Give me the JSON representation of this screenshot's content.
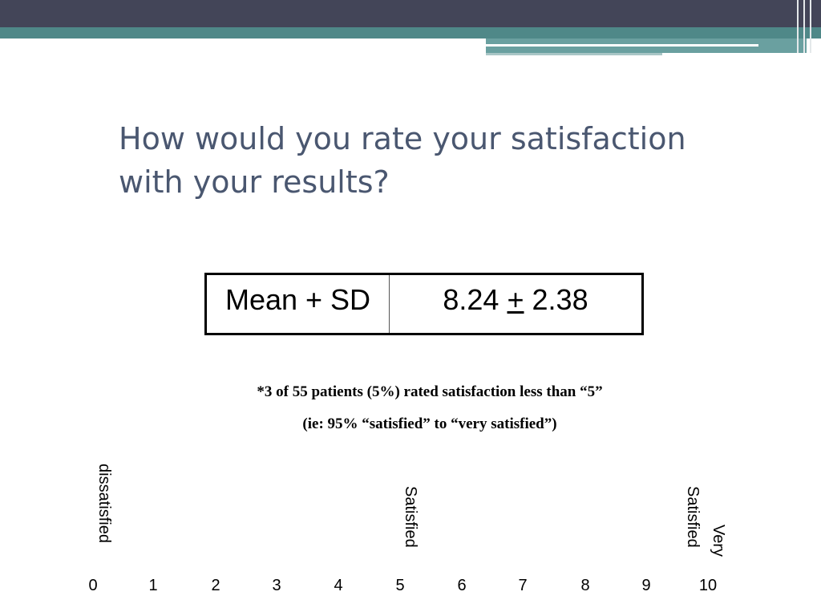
{
  "title": {
    "line1": "How would you rate your satisfaction",
    "line2": "with your results?"
  },
  "stats_table": {
    "label": "Mean + SD",
    "value_mean": "8.24",
    "value_pm": "+",
    "value_sd": "2.38"
  },
  "notes": {
    "line1": "*3 of 55 patients (5%) rated satisfaction less than “5”",
    "line2": "(ie: 95% “satisfied” to “very satisfied”)"
  },
  "scale": {
    "anchors": {
      "low": "dissatisfied",
      "mid": "Satisfied",
      "high_line1": "Very",
      "high_line2": "Satisfied"
    },
    "ticks": [
      "0",
      "1",
      "2",
      "3",
      "4",
      "5",
      "6",
      "7",
      "8",
      "9",
      "10"
    ]
  },
  "colors": {
    "header_dark": "#434558",
    "header_teal": "#4f8888",
    "title_text": "#4a5770"
  }
}
